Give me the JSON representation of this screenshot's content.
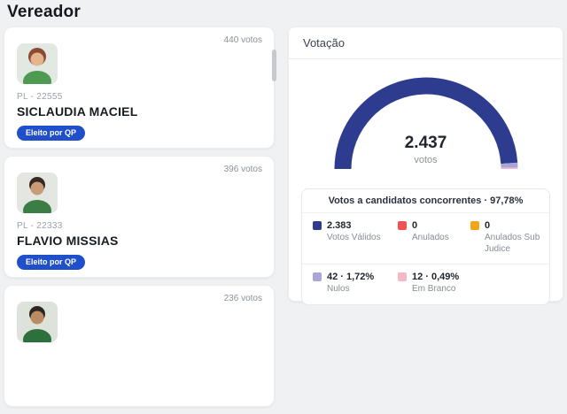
{
  "page": {
    "title": "Vereador"
  },
  "candidates": [
    {
      "votes": "440 votos",
      "party": "PL - 22555",
      "name": "SICLAUDIA MACIEL",
      "badge": "Eleito por QP"
    },
    {
      "votes": "396 votos",
      "party": "PL - 22333",
      "name": "FLAVIO MISSIAS",
      "badge": "Eleito por QP"
    },
    {
      "votes": "236 votos"
    }
  ],
  "panel": {
    "title": "Votação"
  },
  "colors": {
    "badge_blue": "#1f4fc9",
    "valid_navy": "#2e3c90",
    "anulados_red": "#f05252",
    "sub_judice_orange": "#f2a71b",
    "nulos_lavender": "#a9a5d9",
    "em_branco_pink": "#f6b8c6"
  },
  "chart_data": {
    "type": "pie",
    "subtype": "half-donut gauge",
    "title": "Votação",
    "center_value": "2.437",
    "center_label": "votos",
    "summary_title": "Votos a candidatos concorrentes · 97,78%",
    "legend_position": "below",
    "segments": [
      {
        "label": "Votos Válidos",
        "display": "2.383",
        "value": 2383,
        "percent": 97.78,
        "color": "#2e3c90"
      },
      {
        "label": "Anulados",
        "display": "0",
        "value": 0,
        "percent": 0,
        "color": "#f05252"
      },
      {
        "label": "Anulados Sub Judice",
        "display": "0",
        "value": 0,
        "percent": 0,
        "color": "#f2a71b"
      },
      {
        "label": "Nulos",
        "display": "42 · 1,72%",
        "value": 42,
        "percent": 1.72,
        "color": "#a9a5d9"
      },
      {
        "label": "Em Branco",
        "display": "12 · 0,49%",
        "value": 12,
        "percent": 0.49,
        "color": "#f6b8c6"
      }
    ]
  }
}
